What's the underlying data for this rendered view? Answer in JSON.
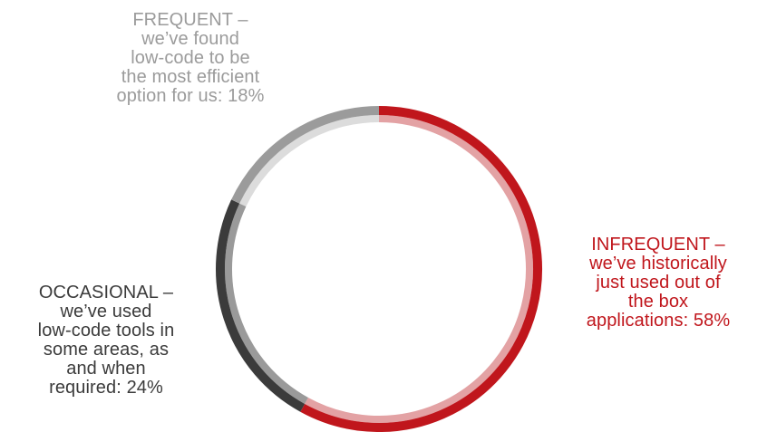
{
  "colors": {
    "infrequent": "#c0161c",
    "infrequent_inner": "#e3a2a4",
    "occasional": "#3b3b3b",
    "occasional_inner": "#9a9a9a",
    "frequent": "#9b9b9b",
    "frequent_inner": "#dcdcdc",
    "background": "#ffffff"
  },
  "chart_data": {
    "type": "pie",
    "start_angle_deg": 0,
    "direction": "clockwise",
    "categories": [
      "INFREQUENT",
      "OCCASIONAL",
      "FREQUENT"
    ],
    "values": [
      58,
      24,
      18
    ],
    "labels": [
      "INFREQUENT –\nwe’ve historically\njust used out of\nthe box\napplications: 58%",
      "OCCASIONAL –\nwe’ve used\nlow-code tools in\nsome areas, as\nand when\nrequired: 24%",
      "FREQUENT –\nwe’ve found\nlow-code to be\nthe most efficient\noption for us: 18%"
    ]
  }
}
